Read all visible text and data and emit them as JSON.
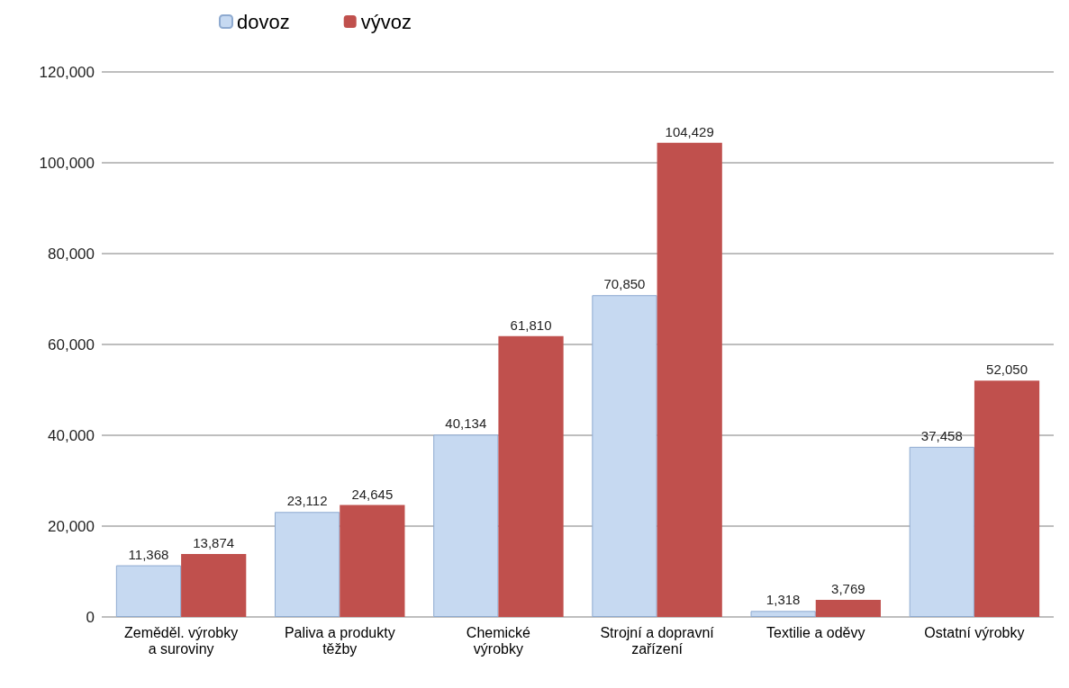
{
  "chart_data": {
    "type": "bar",
    "categories": [
      "Zeměděl. výrobky\na suroviny",
      "Paliva a produkty\ntěžby",
      "Chemické\nvýrobky",
      "Strojní a dopravní\nzařízení",
      "Textilie a oděvy",
      "Ostatní výrobky"
    ],
    "series": [
      {
        "name": "dovoz",
        "color": "#c6d9f1",
        "values": [
          11368,
          23112,
          40134,
          70850,
          1318,
          37458
        ],
        "value_labels": [
          "11,368",
          "23,112",
          "40,134",
          "70,850",
          "1,318",
          "37,458"
        ]
      },
      {
        "name": "vývoz",
        "color": "#c0504d",
        "values": [
          13874,
          24645,
          61810,
          104429,
          3769,
          52050
        ],
        "value_labels": [
          "13,874",
          "24,645",
          "61,810",
          "104,429",
          "3,769",
          "52,050"
        ]
      }
    ],
    "ylim": [
      0,
      120000
    ],
    "yticks": [
      0,
      {
        "value": 20000,
        "label": "20,000"
      },
      {
        "value": 40000,
        "label": "40,000"
      },
      {
        "value": 60000,
        "label": "60,000"
      },
      {
        "value": 80000,
        "label": "80,000"
      },
      {
        "value": 100000,
        "label": "100,000"
      },
      {
        "value": 120000,
        "label": "120,000"
      }
    ],
    "grid": "y",
    "legend": "top left"
  }
}
